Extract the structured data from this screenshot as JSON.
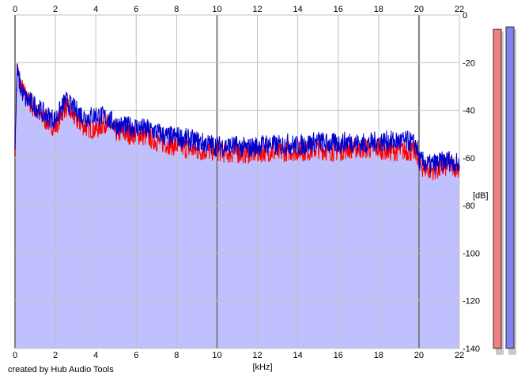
{
  "chart_data": {
    "type": "area",
    "title": "",
    "xlabel": "[kHz]",
    "ylabel": "[dB]",
    "xlim": [
      0,
      22
    ],
    "ylim": [
      -140,
      0
    ],
    "x_ticks": [
      0,
      2,
      4,
      6,
      8,
      10,
      12,
      14,
      16,
      18,
      20,
      22
    ],
    "y_ticks": [
      0,
      -20,
      -40,
      -60,
      -80,
      -100,
      -120,
      -140
    ],
    "grid": true,
    "legend": "none",
    "colors": {
      "plot_background": "#ffffff",
      "fill": "#c0c0ff",
      "grid": "#c0c0c0",
      "grid_major": "#808080",
      "left_channel": "#ff0000",
      "right_channel": "#0000cc"
    },
    "series": [
      {
        "color": "#ff0000",
        "x": [
          0,
          0.1,
          0.3,
          0.5,
          1,
          1.5,
          2,
          2.5,
          3,
          3.5,
          4,
          4.5,
          5,
          5.5,
          6,
          6.5,
          7,
          7.5,
          8,
          8.5,
          9,
          9.5,
          10,
          10.5,
          11,
          11.5,
          12,
          12.5,
          13,
          13.5,
          14,
          14.5,
          15,
          15.5,
          16,
          16.5,
          17,
          17.5,
          18,
          18.5,
          19,
          19.5,
          19.9,
          20,
          20.5,
          21,
          21.5,
          22
        ],
        "values": [
          -55,
          -22,
          -30,
          -34,
          -40,
          -44,
          -47,
          -38,
          -44,
          -47,
          -48,
          -45,
          -49,
          -50,
          -50,
          -51,
          -53,
          -54,
          -55,
          -56,
          -57,
          -57,
          -57,
          -58,
          -58,
          -58,
          -58,
          -57,
          -58,
          -57,
          -57,
          -57,
          -56,
          -57,
          -57,
          -56,
          -56,
          -56,
          -56,
          -57,
          -57,
          -57,
          -58,
          -63,
          -65,
          -65,
          -63,
          -64
        ]
      },
      {
        "color": "#0000cc",
        "x": [
          0,
          0.1,
          0.3,
          0.5,
          1,
          1.5,
          2,
          2.5,
          3,
          3.5,
          4,
          4.5,
          5,
          5.5,
          6,
          6.5,
          7,
          7.5,
          8,
          8.5,
          9,
          9.5,
          10,
          10.5,
          11,
          11.5,
          12,
          12.5,
          13,
          13.5,
          14,
          14.5,
          15,
          15.5,
          16,
          16.5,
          17,
          17.5,
          18,
          18.5,
          19,
          19.5,
          19.9,
          20,
          20.5,
          21,
          21.5,
          22
        ],
        "values": [
          -55,
          -24,
          -31,
          -35,
          -38,
          -42,
          -44,
          -36,
          -40,
          -43,
          -42,
          -43,
          -46,
          -47,
          -47,
          -48,
          -49,
          -51,
          -51,
          -52,
          -53,
          -54,
          -55,
          -55,
          -55,
          -56,
          -55,
          -54,
          -55,
          -54,
          -55,
          -54,
          -53,
          -54,
          -54,
          -53,
          -54,
          -54,
          -53,
          -53,
          -53,
          -53,
          -55,
          -61,
          -63,
          -62,
          -61,
          -63
        ]
      }
    ],
    "meters": [
      {
        "color": "#f08080",
        "value": -6
      },
      {
        "color": "#8080f0",
        "value": -5
      }
    ]
  },
  "footer": {
    "credit": "created by Hub Audio Tools"
  }
}
